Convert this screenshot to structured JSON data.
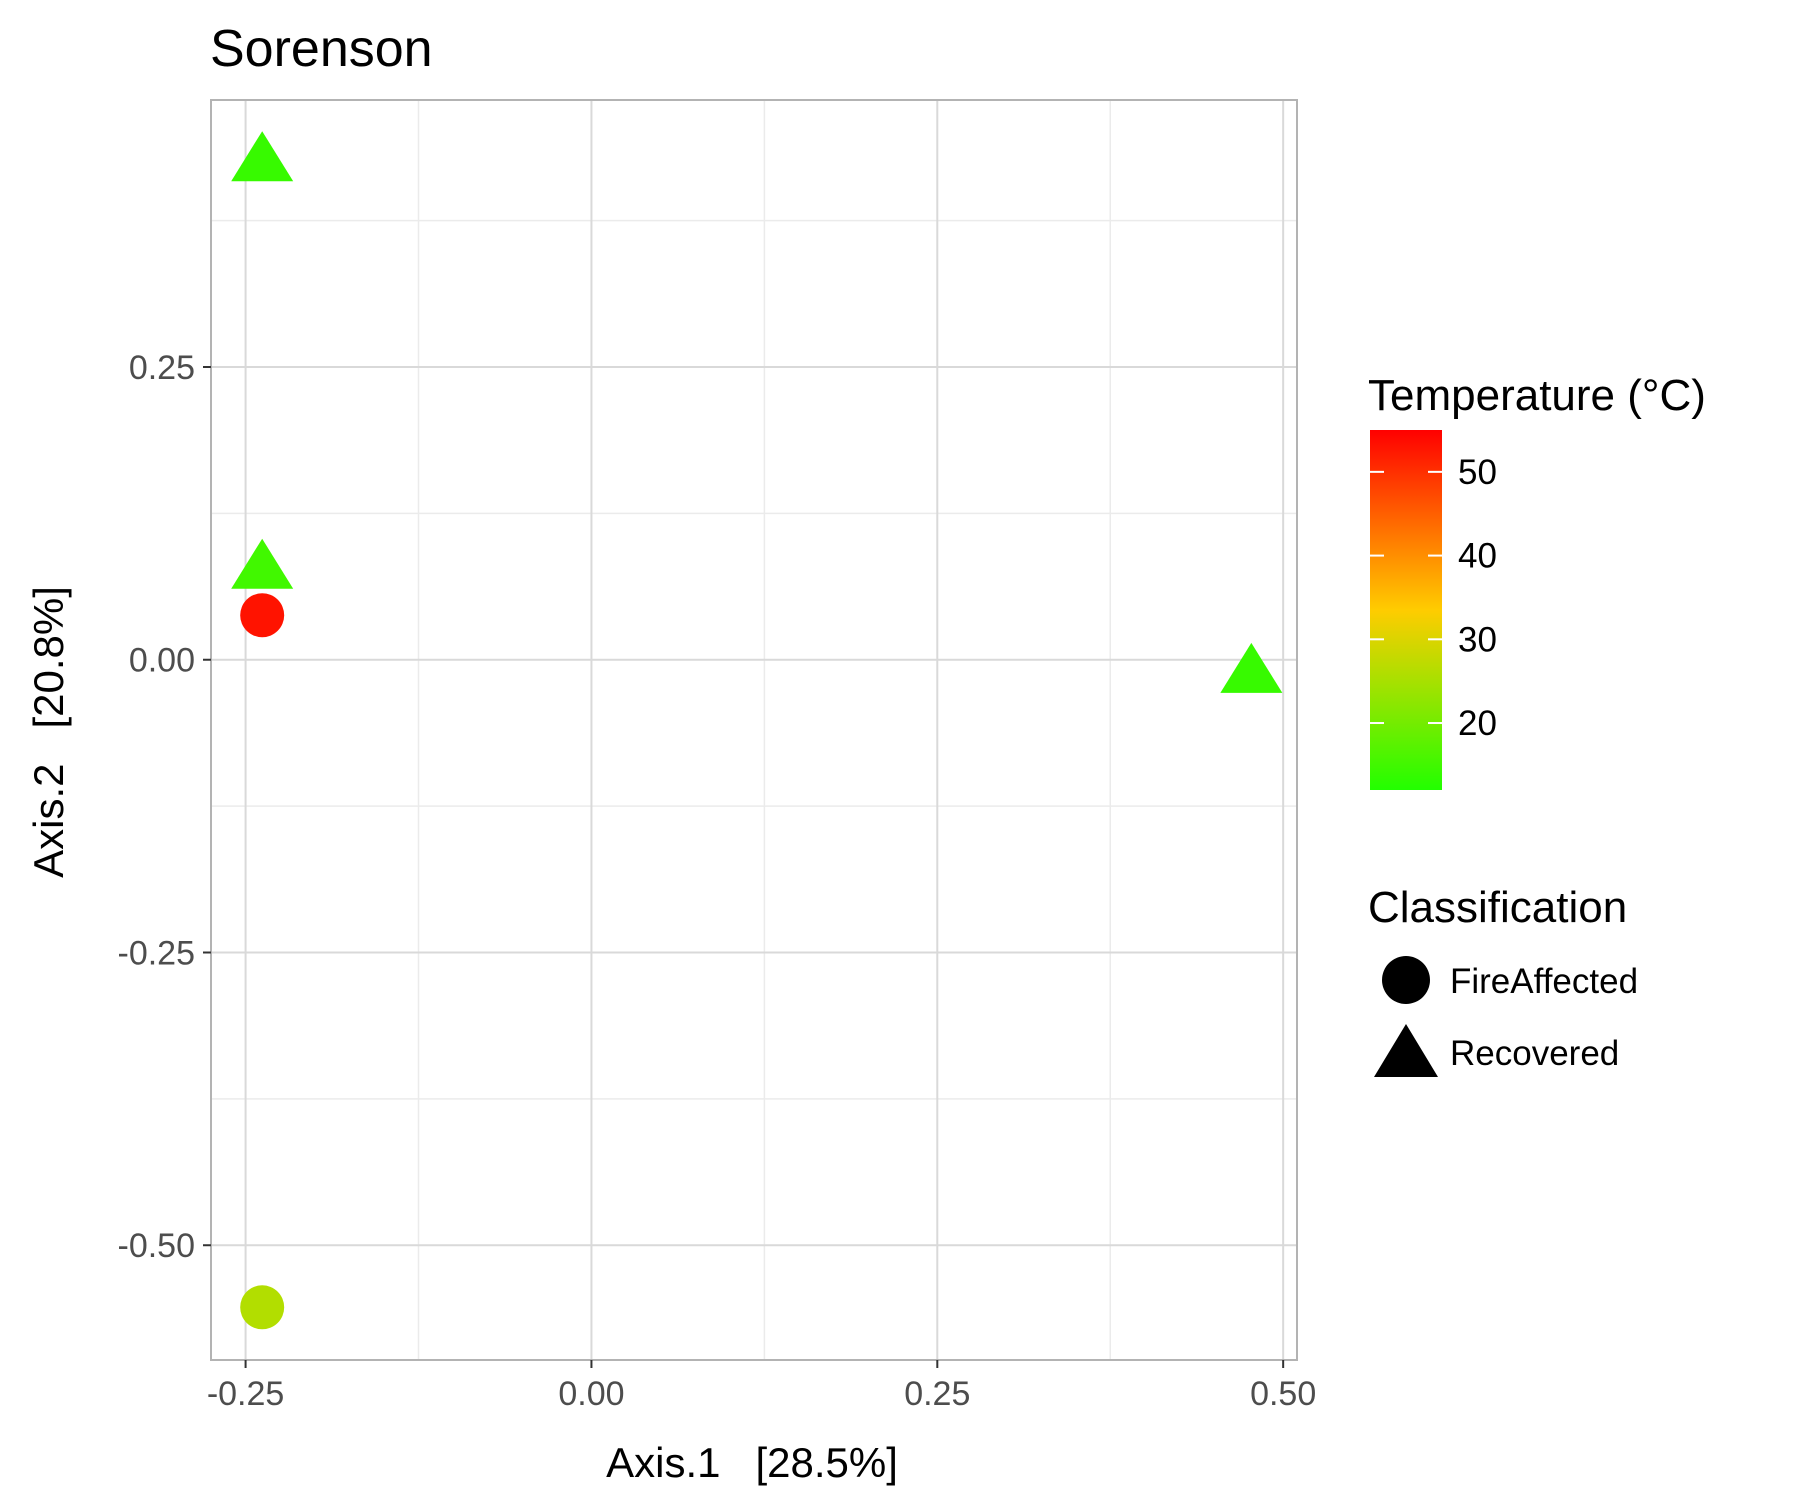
{
  "chart_data": {
    "type": "scatter",
    "title": "Sorenson",
    "xlabel": "Axis.1   [28.5%]",
    "ylabel": "Axis.2   [20.8%]",
    "xlim": [
      -0.275,
      0.51
    ],
    "ylim": [
      -0.598,
      0.478
    ],
    "x_ticks": [
      -0.25,
      0.0,
      0.25,
      0.5
    ],
    "x_tick_labels": [
      "-0.25",
      "0.00",
      "0.25",
      "0.50"
    ],
    "y_ticks": [
      -0.5,
      -0.25,
      0.0,
      0.25
    ],
    "y_tick_labels": [
      "-0.50",
      "-0.25",
      "0.00",
      "0.25"
    ],
    "grid": true,
    "points": [
      {
        "x": -0.238,
        "y": 0.43,
        "classification": "Recovered",
        "temperature": 14
      },
      {
        "x": -0.238,
        "y": 0.082,
        "classification": "Recovered",
        "temperature": 15
      },
      {
        "x": -0.238,
        "y": 0.038,
        "classification": "FireAffected",
        "temperature": 53
      },
      {
        "x": -0.238,
        "y": -0.553,
        "classification": "FireAffected",
        "temperature": 26
      },
      {
        "x": 0.477,
        "y": -0.007,
        "classification": "Recovered",
        "temperature": 14
      }
    ],
    "color_legend": {
      "title": "Temperature (°C)",
      "min": 12,
      "max": 55,
      "ticks": [
        20,
        30,
        40,
        50
      ],
      "tick_labels": [
        "20",
        "30",
        "40",
        "50"
      ],
      "colors": [
        "#22ff00",
        "#ffcc00",
        "#ff0000"
      ]
    },
    "shape_legend": {
      "title": "Classification",
      "items": [
        {
          "label": "FireAffected",
          "shape": "circle"
        },
        {
          "label": "Recovered",
          "shape": "triangle"
        }
      ]
    },
    "legend_position": "right",
    "colors": {
      "panel_border": "#b3b3b3",
      "grid_major": "#d9d9d9",
      "grid_minor": "#ebebeb"
    }
  }
}
